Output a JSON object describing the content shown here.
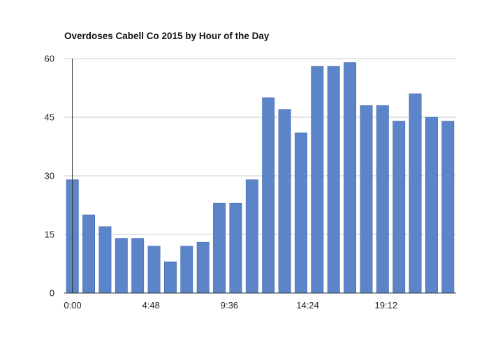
{
  "chart_data": {
    "type": "bar",
    "title": "Overdoses Cabell Co 2015 by Hour of the Day",
    "xlabel": "",
    "ylabel": "",
    "ylim": [
      0,
      60
    ],
    "y_ticks": [
      0,
      15,
      30,
      45,
      60
    ],
    "x_tick_labels": [
      "0:00",
      "4:48",
      "9:36",
      "14:24",
      "19:12"
    ],
    "categories": [
      "0:00",
      "1:00",
      "2:00",
      "3:00",
      "4:00",
      "5:00",
      "6:00",
      "7:00",
      "8:00",
      "9:00",
      "10:00",
      "11:00",
      "12:00",
      "13:00",
      "14:00",
      "15:00",
      "16:00",
      "17:00",
      "18:00",
      "19:00",
      "20:00",
      "21:00",
      "22:00",
      "23:00"
    ],
    "values": [
      29,
      20,
      17,
      14,
      14,
      12,
      8,
      12,
      13,
      23,
      23,
      29,
      50,
      47,
      41,
      58,
      58,
      59,
      48,
      48,
      44,
      51,
      45,
      44
    ],
    "grid": true,
    "colors": {
      "bar": "#5b84c9",
      "bar_edge": "#3f67ad",
      "grid": "#cccccc",
      "axis": "#333333"
    }
  }
}
